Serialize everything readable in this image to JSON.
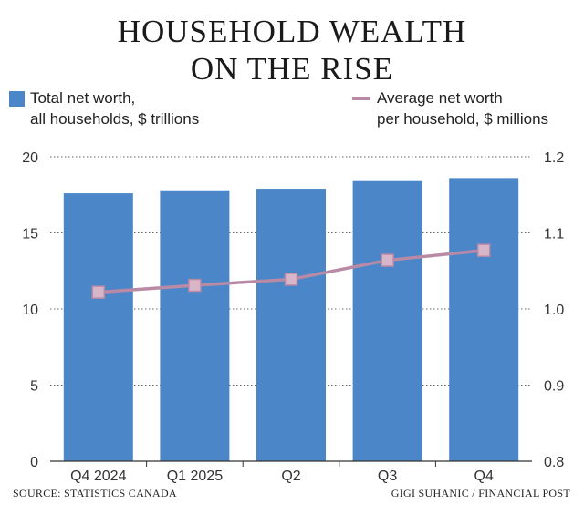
{
  "title_lines": [
    "HOUSEHOLD WEALTH",
    "ON THE RISE"
  ],
  "legend": {
    "bar_label_lines": [
      "Total net worth,",
      "all households, $ trillions"
    ],
    "line_label_lines": [
      "Average net worth",
      "per household, $ millions"
    ]
  },
  "footer": {
    "source": "SOURCE: STATISTICS CANADA",
    "credit": "GIGI SUHANIC / FINANCIAL POST"
  },
  "colors": {
    "bar": "#4a86c8",
    "line": "#b98aa6",
    "marker_fill": "#d7b6c9",
    "grid": "#666666"
  },
  "chart_data": {
    "type": "bar",
    "title": "HOUSEHOLD WEALTH ON THE RISE",
    "categories": [
      "Q4 2024",
      "Q1 2025",
      "Q2",
      "Q3",
      "Q4"
    ],
    "series": [
      {
        "name": "Total net worth, all households, $ trillions",
        "type": "bar",
        "axis": "left",
        "values": [
          17.6,
          17.8,
          17.9,
          18.4,
          18.6
        ]
      },
      {
        "name": "Average net worth per household, $ millions",
        "type": "line",
        "axis": "right",
        "values": [
          1.022,
          1.031,
          1.039,
          1.064,
          1.077
        ]
      }
    ],
    "left_axis": {
      "ylim": [
        0,
        20
      ],
      "ticks": [
        "0",
        "5",
        "10",
        "15",
        "20"
      ]
    },
    "right_axis": {
      "ylim": [
        0.8,
        1.2
      ],
      "ticks": [
        "0.8",
        "0.9",
        "1.0",
        "1.1",
        "1.2"
      ]
    },
    "grid": true
  }
}
